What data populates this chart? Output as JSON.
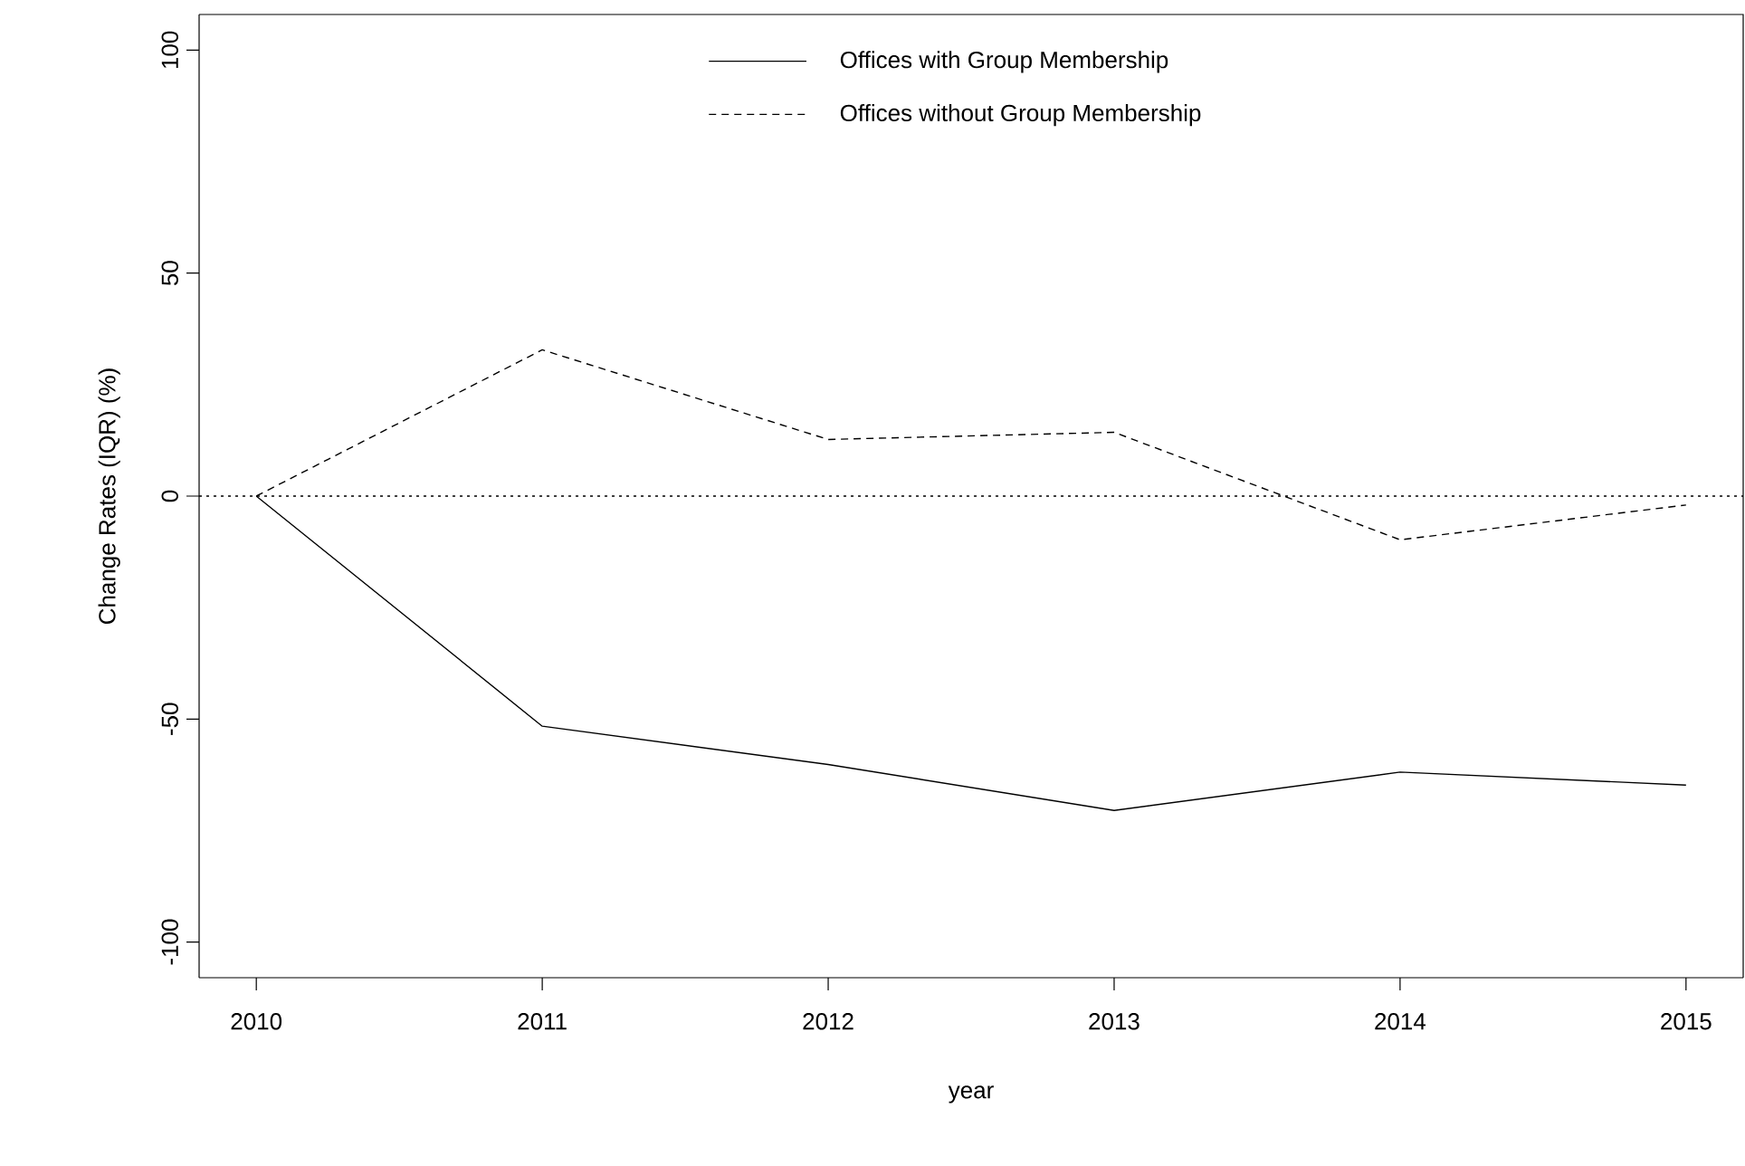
{
  "chart_data": {
    "type": "line",
    "xlabel": "year",
    "ylabel": "Change Rates (IQR) (%)",
    "x": [
      2010,
      2011,
      2012,
      2013,
      2014,
      2015
    ],
    "series": [
      {
        "name": "Offices with Group Membership",
        "color": "#000000",
        "line_style": "solid",
        "values": [
          0,
          -51.6,
          -60.2,
          -70.5,
          -61.9,
          -64.8
        ]
      },
      {
        "name": "Offices without Group Membership",
        "color": "#000000",
        "line_style": "dashed",
        "values": [
          0,
          32.8,
          12.7,
          14.3,
          -9.8,
          -2.0
        ]
      }
    ],
    "xlim": [
      2009.8,
      2015.2
    ],
    "ylim": [
      -108,
      108
    ],
    "xticks": [
      2010,
      2011,
      2012,
      2013,
      2014,
      2015
    ],
    "yticks": [
      -100,
      -50,
      0,
      50,
      100
    ],
    "ref_lines": [
      {
        "axis": "y",
        "value": 0,
        "line_style": "dotted",
        "color": "#000000"
      }
    ],
    "legend": "top",
    "grid": false,
    "marker": "none"
  }
}
